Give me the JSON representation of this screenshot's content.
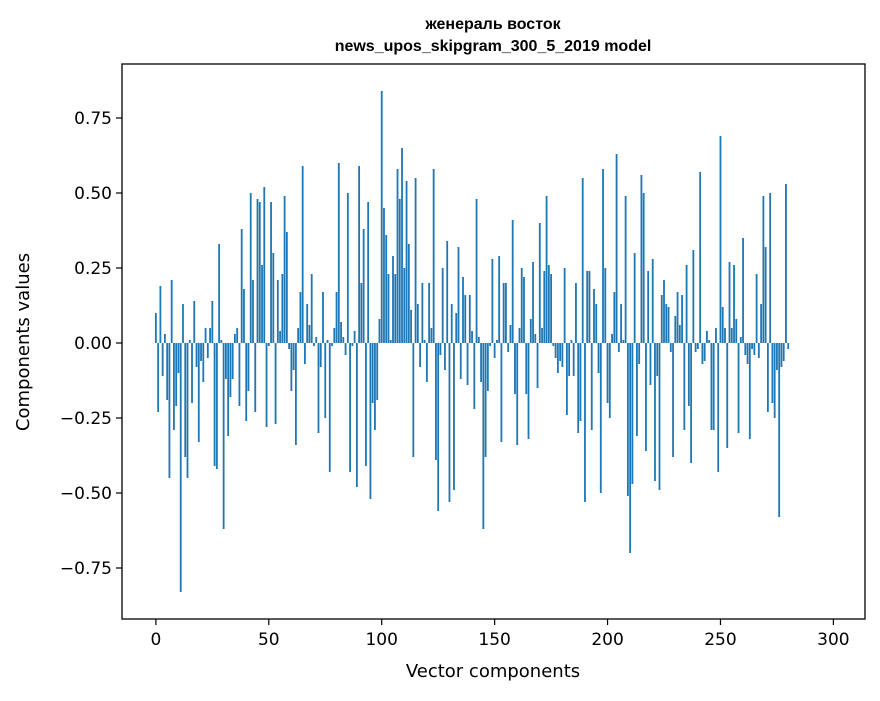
{
  "chart_data": {
    "type": "bar",
    "title": [
      "женераль восток",
      "news_upos_skipgram_300_5_2019 model"
    ],
    "xlabel": "Vector components",
    "ylabel": "Components values",
    "xlim": [
      -15,
      314
    ],
    "ylim": [
      -0.92,
      0.93
    ],
    "xticks": [
      0,
      50,
      100,
      150,
      200,
      250,
      300
    ],
    "xtick_labels": [
      "0",
      "50",
      "100",
      "150",
      "200",
      "250",
      "300"
    ],
    "yticks": [
      -0.75,
      -0.5,
      -0.25,
      0.0,
      0.25,
      0.5,
      0.75
    ],
    "ytick_labels": [
      "−0.75",
      "−0.50",
      "−0.25",
      "0.00",
      "0.25",
      "0.50",
      "0.75"
    ],
    "grid": false,
    "bar_color": "#1f77b4",
    "values": [
      0.1,
      -0.23,
      0.19,
      -0.11,
      0.03,
      -0.19,
      -0.45,
      0.21,
      -0.29,
      -0.21,
      -0.1,
      -0.83,
      0.13,
      -0.38,
      -0.45,
      0.01,
      -0.2,
      0.14,
      -0.08,
      -0.33,
      -0.06,
      -0.13,
      0.05,
      -0.05,
      0.05,
      0.14,
      -0.41,
      -0.42,
      0.33,
      0.01,
      -0.62,
      -0.12,
      -0.31,
      -0.18,
      -0.12,
      0.03,
      0.05,
      -0.21,
      0.38,
      0.18,
      -0.26,
      -0.16,
      0.5,
      0.21,
      -0.23,
      0.48,
      0.47,
      0.26,
      0.52,
      -0.28,
      -0.01,
      0.47,
      0.3,
      -0.27,
      0.21,
      0.04,
      0.23,
      0.49,
      0.37,
      -0.02,
      -0.16,
      -0.09,
      -0.34,
      0.05,
      0.17,
      0.59,
      -0.07,
      0.13,
      0.06,
      0.23,
      -0.01,
      0.02,
      -0.3,
      -0.08,
      0.17,
      -0.25,
      0.01,
      -0.43,
      -0.01,
      0.05,
      0.17,
      0.6,
      0.07,
      0.02,
      -0.04,
      0.5,
      -0.43,
      -0.01,
      0.04,
      -0.48,
      0.59,
      0.2,
      0.38,
      -0.41,
      0.47,
      -0.52,
      -0.2,
      -0.29,
      -0.19,
      0.08,
      0.84,
      0.45,
      0.36,
      0.23,
      0.01,
      0.29,
      0.23,
      0.58,
      0.48,
      0.65,
      0.25,
      0.54,
      0.33,
      0.11,
      -0.38,
      0.55,
      0.13,
      -0.08,
      0.2,
      0.01,
      -0.13,
      0.2,
      0.05,
      0.58,
      -0.39,
      -0.56,
      -0.04,
      0.25,
      -0.09,
      0.34,
      -0.53,
      0.13,
      -0.49,
      0.1,
      0.32,
      -0.12,
      0.22,
      0.16,
      -0.14,
      0.16,
      0.04,
      -0.22,
      0.48,
      0.02,
      -0.13,
      -0.62,
      -0.38,
      -0.16,
      -0.01,
      0.28,
      -0.05,
      0.01,
      0.29,
      -0.33,
      0.2,
      0.2,
      -0.03,
      0.06,
      0.41,
      -0.17,
      -0.34,
      0.05,
      0.25,
      0.22,
      -0.17,
      -0.32,
      0.08,
      0.27,
      0.03,
      -0.15,
      0.4,
      0.05,
      0.24,
      0.49,
      0.26,
      0.23,
      -0.01,
      -0.05,
      -0.1,
      -0.06,
      -0.08,
      0.25,
      -0.24,
      -0.11,
      0.01,
      -0.11,
      0.2,
      -0.3,
      -0.26,
      0.55,
      -0.53,
      0.24,
      0.24,
      -0.29,
      0.18,
      0.13,
      -0.1,
      -0.5,
      0.58,
      0.25,
      -0.2,
      -0.25,
      0.03,
      0.17,
      0.63,
      -0.03,
      0.13,
      0.01,
      0.49,
      -0.51,
      -0.7,
      -0.47,
      0.3,
      -0.31,
      -0.07,
      0.56,
      0.5,
      -0.36,
      0.24,
      -0.14,
      0.28,
      -0.46,
      -0.11,
      -0.49,
      0.16,
      0.21,
      0.13,
      0.12,
      -0.03,
      -0.38,
      0.09,
      0.17,
      0.06,
      0.16,
      -0.29,
      0.26,
      -0.21,
      -0.4,
      0.31,
      -0.03,
      -0.02,
      0.57,
      -0.07,
      -0.06,
      0.04,
      0.01,
      -0.29,
      -0.29,
      0.05,
      -0.43,
      0.69,
      0.12,
      0.05,
      -0.35,
      0.27,
      0.05,
      0.26,
      0.08,
      -0.3,
      0.02,
      0.35,
      -0.04,
      -0.07,
      -0.32,
      -0.02,
      -0.04,
      0.23,
      -0.05,
      0.13,
      0.49,
      0.32,
      -0.23,
      0.5,
      -0.2,
      -0.25,
      -0.09,
      -0.58,
      -0.08,
      -0.06,
      0.53,
      -0.02
    ]
  }
}
